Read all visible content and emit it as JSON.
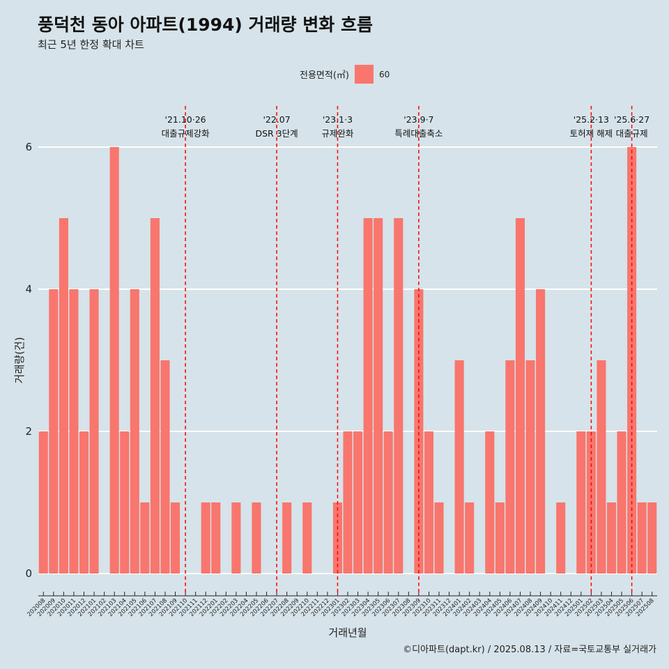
{
  "title": "풍덕천 동아 아파트(1994) 거래량 변화 흐름",
  "subtitle": "최근 5년 한정 확대 차트",
  "legend": {
    "title": "전용면적(㎡)",
    "item": "60"
  },
  "caption": "©디아파트(dapt.kr) / 2025.08.13 / 자료=국토교통부 실거래가",
  "colors": {
    "bar": "#f8766d",
    "background": "#d6e3ea",
    "vline": "#ff0000",
    "grid": "#ffffff"
  },
  "chart_data": {
    "type": "bar",
    "xlabel": "거래년월",
    "ylabel": "거래량(건)",
    "ylim": [
      0,
      6
    ],
    "yticks": [
      0,
      2,
      4,
      6
    ],
    "grid": true,
    "legend_position": "top",
    "categories": [
      "202008",
      "202009",
      "202010",
      "202011",
      "202012",
      "202101",
      "202102",
      "202103",
      "202104",
      "202105",
      "202106",
      "202107",
      "202108",
      "202109",
      "202110",
      "202111",
      "202112",
      "202201",
      "202202",
      "202203",
      "202204",
      "202205",
      "202206",
      "202207",
      "202208",
      "202209",
      "202210",
      "202211",
      "202212",
      "202301",
      "202302",
      "202303",
      "202304",
      "202305",
      "202306",
      "202307",
      "202308",
      "202309",
      "202310",
      "202311",
      "202312",
      "202401",
      "202402",
      "202403",
      "202404",
      "202405",
      "202406",
      "202407",
      "202408",
      "202409",
      "202410",
      "202411",
      "202412",
      "202501",
      "202502",
      "202503",
      "202504",
      "202505",
      "202506",
      "202507",
      "202508"
    ],
    "series": [
      {
        "name": "60",
        "values": [
          2,
          4,
          5,
          4,
          2,
          4,
          0,
          6,
          2,
          4,
          1,
          5,
          3,
          1,
          0,
          0,
          1,
          1,
          0,
          1,
          0,
          1,
          0,
          0,
          1,
          0,
          1,
          0,
          0,
          1,
          2,
          2,
          5,
          5,
          2,
          5,
          0,
          4,
          2,
          1,
          0,
          3,
          1,
          0,
          2,
          1,
          3,
          5,
          3,
          4,
          0,
          1,
          0,
          2,
          2,
          3,
          1,
          2,
          6,
          1,
          1
        ]
      }
    ],
    "annotations": [
      {
        "category": "202110",
        "line1": "'21.10·26",
        "line2": "대출규제강화"
      },
      {
        "category": "202207",
        "line1": "'22.07",
        "line2": "DSR 3단계"
      },
      {
        "category": "202301",
        "line1": "'23.1·3",
        "line2": "규제완화"
      },
      {
        "category": "202309",
        "line1": "'23.9·7",
        "line2": "특례대출축소"
      },
      {
        "category": "202502",
        "line1": "'25.2·13",
        "line2": "토허제 해제"
      },
      {
        "category": "202506",
        "line1": "'25.6·27",
        "line2": "대출규제"
      }
    ]
  }
}
